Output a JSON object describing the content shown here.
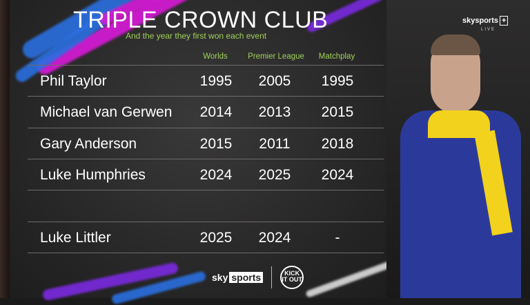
{
  "title": "TRIPLE CROWN CLUB",
  "subtitle": "And the year they first won each event",
  "columns": [
    "Worlds",
    "Premier League",
    "Matchplay"
  ],
  "rows": [
    {
      "name": "Phil Taylor",
      "worlds": "1995",
      "premier_league": "2005",
      "matchplay": "1995"
    },
    {
      "name": "Michael van Gerwen",
      "worlds": "2014",
      "premier_league": "2013",
      "matchplay": "2015"
    },
    {
      "name": "Gary Anderson",
      "worlds": "2015",
      "premier_league": "2011",
      "matchplay": "2018"
    },
    {
      "name": "Luke Humphries",
      "worlds": "2024",
      "premier_league": "2025",
      "matchplay": "2024"
    },
    {
      "name": "Luke Littler",
      "worlds": "2025",
      "premier_league": "2024",
      "matchplay": "-"
    }
  ],
  "branding": {
    "sky": "sky",
    "sports": "sports",
    "plus": "+",
    "live": "LIVE",
    "kick_it_out": "KICK IT OUT"
  },
  "colors": {
    "accent_green": "#9fd15a",
    "streak_magenta": "#d81ad8",
    "streak_blue": "#2a6fe0",
    "streak_purple": "#7a2ae0"
  }
}
